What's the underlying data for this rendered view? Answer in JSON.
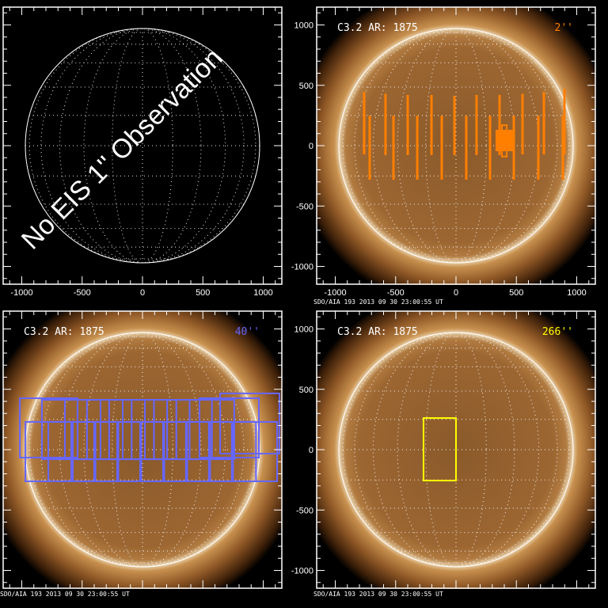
{
  "timestamp": "SDO/AIA 193   2013 09 30 23:00:55 UT",
  "colors": {
    "slits_2": "#ff7f00",
    "rasters_40": "#6666ff",
    "raster_266": "#ffff00",
    "grid": "#ffffff"
  },
  "panels": [
    {
      "id": "no-eis",
      "title": "",
      "label": "",
      "message": "No EIS 1'' Observation",
      "show_sun": false,
      "show_timestamp": false,
      "x_labels": true,
      "y_labels": false
    },
    {
      "id": "eis-2",
      "title": "C3.2 AR: 1875",
      "label": "2''",
      "label_color": "#ff7f00",
      "show_sun": true,
      "show_timestamp": true,
      "x_labels": true,
      "y_labels": true
    },
    {
      "id": "eis-40",
      "title": "C3.2 AR: 1875",
      "label": "40''",
      "label_color": "#6666ff",
      "show_sun": true,
      "show_timestamp": true,
      "x_labels": false,
      "y_labels": false
    },
    {
      "id": "eis-266",
      "title": "C3.2 AR: 1875",
      "label": "266''",
      "label_color": "#ffff00",
      "show_sun": true,
      "show_timestamp": true,
      "x_labels": false,
      "y_labels": true
    }
  ],
  "chart_data": [
    {
      "type": "image",
      "panel": "eis-2",
      "xlim": [
        -1157,
        1157
      ],
      "ylim": [
        -1148,
        1148
      ],
      "xticks": [
        -1000,
        -500,
        0,
        500,
        1000
      ],
      "yticks": [
        -1000,
        -500,
        0,
        500,
        1000
      ],
      "overlay_slits_arcsec": [
        {
          "x": -761,
          "y": [
            -72,
            446
          ]
        },
        {
          "x": -584,
          "y": [
            -78,
            430
          ]
        },
        {
          "x": -400,
          "y": [
            -78,
            420
          ]
        },
        {
          "x": -203,
          "y": [
            -78,
            420
          ]
        },
        {
          "x": -13,
          "y": [
            -78,
            412
          ]
        },
        {
          "x": 170,
          "y": [
            -78,
            420
          ]
        },
        {
          "x": 361,
          "y": [
            -78,
            420
          ]
        },
        {
          "x": 551,
          "y": [
            -72,
            430
          ]
        },
        {
          "x": 728,
          "y": [
            -72,
            446
          ]
        },
        {
          "x": 898,
          "y": [
            -72,
            470
          ]
        },
        {
          "x": -715,
          "y": [
            -282,
            249
          ]
        },
        {
          "x": -518,
          "y": [
            -282,
            249
          ]
        },
        {
          "x": -321,
          "y": [
            -282,
            249
          ]
        },
        {
          "x": -118,
          "y": [
            -282,
            249
          ]
        },
        {
          "x": 85,
          "y": [
            -282,
            249
          ]
        },
        {
          "x": 282,
          "y": [
            -282,
            249
          ]
        },
        {
          "x": 479,
          "y": [
            -282,
            249
          ]
        },
        {
          "x": 682,
          "y": [
            -282,
            249
          ]
        },
        {
          "x": 885,
          "y": [
            -282,
            249
          ]
        }
      ],
      "overlay_boxes_arcsec": [
        {
          "x": [
            334,
            466
          ],
          "y": [
            -39,
            125
          ],
          "filled": true
        },
        {
          "x": [
            380,
            420
          ],
          "y": [
            -90,
            170
          ],
          "filled": false
        }
      ]
    },
    {
      "type": "image",
      "panel": "eis-40",
      "xlim": [
        -1157,
        1157
      ],
      "ylim": [
        -1148,
        1148
      ],
      "overlay_rasters_arcsec": [
        {
          "x": [
            -1016,
            -538
          ],
          "y": [
            -66,
            426
          ]
        },
        {
          "x": -833,
          "x1": -348,
          "y": [
            -79,
            413
          ]
        },
        {
          "x": [
            -643,
            -164
          ],
          "y": [
            -79,
            413
          ]
        },
        {
          "x": [
            -460,
            20
          ],
          "y": [
            -79,
            413
          ]
        },
        {
          "x": [
            -276,
            204
          ],
          "y": [
            -79,
            413
          ]
        },
        {
          "x": [
            -90,
            390
          ],
          "y": [
            -79,
            413
          ]
        },
        {
          "x": [
            95,
            575
          ],
          "y": [
            -79,
            413
          ]
        },
        {
          "x": [
            280,
            760
          ],
          "y": [
            -79,
            413
          ]
        },
        {
          "x": [
            472,
            964
          ],
          "y": [
            -66,
            426
          ]
        },
        {
          "x": [
            643,
            1134
          ],
          "y": [
            -33,
            466
          ]
        },
        {
          "x": [
            -970,
            -577
          ],
          "y": [
            -262,
            230
          ]
        },
        {
          "x": [
            -780,
            -390
          ],
          "y": [
            -262,
            230
          ]
        },
        {
          "x": [
            -590,
            -200
          ],
          "y": [
            -262,
            230
          ]
        },
        {
          "x": [
            -400,
            -10
          ],
          "y": [
            -262,
            230
          ]
        },
        {
          "x": [
            -210,
            180
          ],
          "y": [
            -262,
            230
          ]
        },
        {
          "x": [
            -20,
            370
          ],
          "y": [
            -262,
            230
          ]
        },
        {
          "x": [
            170,
            560
          ],
          "y": [
            -262,
            230
          ]
        },
        {
          "x": [
            360,
            750
          ],
          "y": [
            -262,
            230
          ]
        },
        {
          "x": [
            550,
            940
          ],
          "y": [
            -262,
            230
          ]
        },
        {
          "x": [
            740,
            1115
          ],
          "y": [
            -262,
            230
          ]
        }
      ]
    },
    {
      "type": "image",
      "panel": "eis-266",
      "xlim": [
        -1157,
        1157
      ],
      "ylim": [
        -1148,
        1148
      ],
      "yticks": [
        -1000,
        -500,
        0,
        500,
        1000
      ],
      "overlay_rasters_arcsec": [
        {
          "x": [
            -269,
            0
          ],
          "y": [
            -256,
            262
          ]
        }
      ]
    }
  ]
}
